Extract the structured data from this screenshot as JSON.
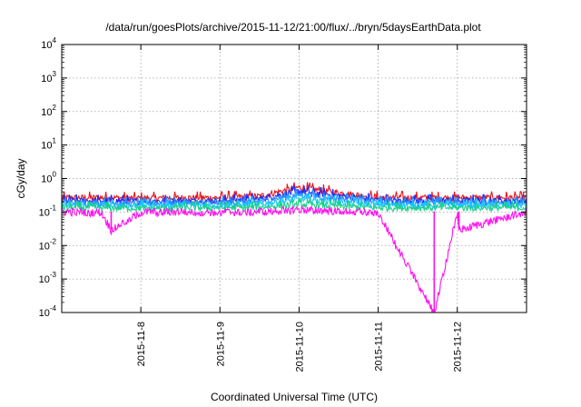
{
  "chart_data": {
    "type": "line",
    "title": "/data/run/goesPlots/archive/2015-11-12/21:00/flux/../bryn/5daysEarthData.plot",
    "xlabel": "Coordinated Universal Time (UTC)",
    "ylabel": "cGy/day",
    "yscale": "log",
    "ylim": [
      0.0001,
      10000
    ],
    "y_ticks": [
      {
        "base": "10",
        "exp": "4",
        "value": 10000
      },
      {
        "base": "10",
        "exp": "3",
        "value": 1000
      },
      {
        "base": "10",
        "exp": "2",
        "value": 100
      },
      {
        "base": "10",
        "exp": "1",
        "value": 10
      },
      {
        "base": "10",
        "exp": "0",
        "value": 1
      },
      {
        "base": "10",
        "exp": "-1",
        "value": 0.1
      },
      {
        "base": "10",
        "exp": "-2",
        "value": 0.01
      },
      {
        "base": "10",
        "exp": "-3",
        "value": 0.001
      },
      {
        "base": "10",
        "exp": "-4",
        "value": 0.0001
      }
    ],
    "xlim": [
      "2015-11-07T00:00",
      "2015-11-12T21:00"
    ],
    "x_ticks": [
      "2015-11-8",
      "2015-11-9",
      "2015-11-10",
      "2015-11-11",
      "2015-11-12"
    ],
    "grid": true,
    "legend": "none",
    "series": [
      {
        "color": "#e8141c",
        "level": 0.27,
        "points": [
          [
            "2015-11-07T00:00",
            0.27
          ],
          [
            "2015-11-07T12:00",
            0.27
          ],
          [
            "2015-11-08T00:00",
            0.26
          ],
          [
            "2015-11-08T12:00",
            0.27
          ],
          [
            "2015-11-09T00:00",
            0.27
          ],
          [
            "2015-11-09T12:00",
            0.3
          ],
          [
            "2015-11-10T00:00",
            0.55
          ],
          [
            "2015-11-10T12:00",
            0.38
          ],
          [
            "2015-11-11T00:00",
            0.28
          ],
          [
            "2015-11-11T12:00",
            0.27
          ],
          [
            "2015-11-12T00:00",
            0.27
          ],
          [
            "2015-11-12T21:00",
            0.27
          ]
        ]
      },
      {
        "color": "#1a2cff",
        "level": 0.22,
        "points": [
          [
            "2015-11-07T00:00",
            0.22
          ],
          [
            "2015-11-07T12:00",
            0.22
          ],
          [
            "2015-11-08T00:00",
            0.21
          ],
          [
            "2015-11-08T12:00",
            0.22
          ],
          [
            "2015-11-09T00:00",
            0.22
          ],
          [
            "2015-11-09T12:00",
            0.25
          ],
          [
            "2015-11-10T00:00",
            0.42
          ],
          [
            "2015-11-10T12:00",
            0.31
          ],
          [
            "2015-11-11T00:00",
            0.23
          ],
          [
            "2015-11-11T12:00",
            0.22
          ],
          [
            "2015-11-12T00:00",
            0.22
          ],
          [
            "2015-11-12T21:00",
            0.22
          ]
        ]
      },
      {
        "color": "#2b8cff",
        "level": 0.19,
        "points": [
          [
            "2015-11-07T00:00",
            0.19
          ],
          [
            "2015-11-07T12:00",
            0.19
          ],
          [
            "2015-11-08T00:00",
            0.18
          ],
          [
            "2015-11-08T12:00",
            0.19
          ],
          [
            "2015-11-09T00:00",
            0.19
          ],
          [
            "2015-11-09T12:00",
            0.21
          ],
          [
            "2015-11-10T00:00",
            0.33
          ],
          [
            "2015-11-10T12:00",
            0.26
          ],
          [
            "2015-11-11T00:00",
            0.2
          ],
          [
            "2015-11-11T12:00",
            0.19
          ],
          [
            "2015-11-12T00:00",
            0.19
          ],
          [
            "2015-11-12T21:00",
            0.19
          ]
        ]
      },
      {
        "color": "#19c8ff",
        "level": 0.16,
        "points": [
          [
            "2015-11-07T00:00",
            0.16
          ],
          [
            "2015-11-07T12:00",
            0.16
          ],
          [
            "2015-11-08T00:00",
            0.155
          ],
          [
            "2015-11-08T12:00",
            0.16
          ],
          [
            "2015-11-09T00:00",
            0.16
          ],
          [
            "2015-11-09T12:00",
            0.17
          ],
          [
            "2015-11-10T00:00",
            0.24
          ],
          [
            "2015-11-10T12:00",
            0.2
          ],
          [
            "2015-11-11T00:00",
            0.165
          ],
          [
            "2015-11-11T12:00",
            0.16
          ],
          [
            "2015-11-12T00:00",
            0.16
          ],
          [
            "2015-11-12T21:00",
            0.16
          ]
        ]
      },
      {
        "color": "#19d08a",
        "level": 0.135,
        "points": [
          [
            "2015-11-07T00:00",
            0.135
          ],
          [
            "2015-11-07T12:00",
            0.135
          ],
          [
            "2015-11-08T00:00",
            0.13
          ],
          [
            "2015-11-08T12:00",
            0.135
          ],
          [
            "2015-11-09T00:00",
            0.135
          ],
          [
            "2015-11-09T12:00",
            0.14
          ],
          [
            "2015-11-10T00:00",
            0.17
          ],
          [
            "2015-11-10T12:00",
            0.15
          ],
          [
            "2015-11-11T00:00",
            0.135
          ],
          [
            "2015-11-11T12:00",
            0.135
          ],
          [
            "2015-11-12T00:00",
            0.135
          ],
          [
            "2015-11-12T21:00",
            0.135
          ]
        ]
      },
      {
        "color": "#ff10f0",
        "level": 0.105,
        "points": [
          [
            "2015-11-07T00:00",
            0.105
          ],
          [
            "2015-11-07T12:00",
            0.1
          ],
          [
            "2015-11-07T15:00",
            0.03
          ],
          [
            "2015-11-08T00:00",
            0.1
          ],
          [
            "2015-11-08T12:00",
            0.105
          ],
          [
            "2015-11-09T00:00",
            0.1
          ],
          [
            "2015-11-09T12:00",
            0.105
          ],
          [
            "2015-11-10T00:00",
            0.12
          ],
          [
            "2015-11-10T12:00",
            0.11
          ],
          [
            "2015-11-11T00:00",
            0.1
          ],
          [
            "2015-11-11T17:00",
            0.0001
          ],
          [
            "2015-11-12T00:00",
            0.1
          ],
          [
            "2015-11-12T00:30",
            0.03
          ],
          [
            "2015-11-12T21:00",
            0.105
          ]
        ]
      }
    ]
  }
}
